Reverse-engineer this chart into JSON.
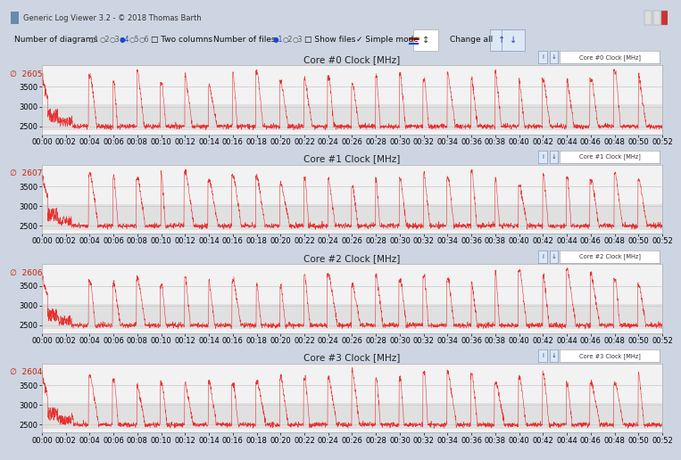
{
  "title": "Generic Log Viewer 3.2 - © 2018 Thomas Barth",
  "cores": [
    {
      "label": "Core #0 Clock [MHz]",
      "avg": 2605,
      "legend": "Core #0 Clock [MHz]"
    },
    {
      "label": "Core #1 Clock [MHz]",
      "avg": 2607,
      "legend": "Core #1 Clock [MHz]"
    },
    {
      "label": "Core #2 Clock [MHz]",
      "avg": 2606,
      "legend": "Core #2 Clock [MHz]"
    },
    {
      "label": "Core #3 Clock [MHz]",
      "avg": 2604,
      "legend": "Core #3 Clock [MHz]"
    }
  ],
  "ymin": 2300,
  "ymax": 4050,
  "yticks": [
    2500,
    3000,
    3500
  ],
  "band_lo": 2400,
  "band_hi": 3050,
  "xmin": 0,
  "xmax": 3120,
  "xtick_labels": [
    "00:00",
    "00:02",
    "00:04",
    "00:06",
    "00:08",
    "00:10",
    "00:12",
    "00:14",
    "00:16",
    "00:18",
    "00:20",
    "00:22",
    "00:24",
    "00:26",
    "00:28",
    "00:30",
    "00:32",
    "00:34",
    "00:36",
    "00:38",
    "00:40",
    "00:42",
    "00:44",
    "00:46",
    "00:48",
    "00:50",
    "00:52"
  ],
  "line_color": "#e83030",
  "bg_outer": "#cdd5e2",
  "bg_plot": "#f2f2f2",
  "bg_band": "#e0e0e0",
  "grid_color": "#c8c8c8",
  "titlebar_bg": "#c2cdd8",
  "toolbar_bg": "#dce4ef",
  "avg_color": "#cc2200",
  "title_fontsize": 7.5,
  "tick_fontsize": 6.0,
  "avg_fontsize": 7,
  "window_border": "#8899aa"
}
